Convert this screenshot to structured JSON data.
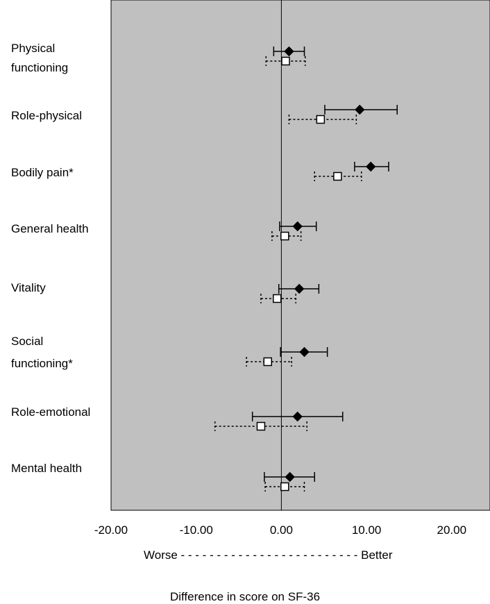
{
  "chart_data": {
    "type": "scatter",
    "subtype": "forest-plot",
    "xlabel": "Difference in score on SF-36",
    "direction_label": "Worse - - - - - - - - - - - - - - - - - - - - - - - - - Better",
    "xlim": [
      -20,
      24.5
    ],
    "xticks": [
      "-20.00",
      "-10.00",
      "0.00",
      "10.00",
      "20.00"
    ],
    "xtick_values": [
      -20,
      -10,
      0,
      10,
      20
    ],
    "reference_line": 0,
    "background": "#c0c0c0",
    "categories": [
      "Physical\nfunctioning",
      "Role-physical",
      "Bodily pain*",
      "General health",
      "Vitality",
      "Social\nfunctioning*",
      "Role-emotional",
      "Mental health"
    ],
    "series": [
      {
        "marker": "filled-diamond",
        "line": "solid",
        "values": [
          0.9,
          9.2,
          10.5,
          1.9,
          2.1,
          2.7,
          1.9,
          1.0
        ],
        "ci_low": [
          -0.9,
          5.1,
          8.6,
          -0.2,
          -0.3,
          -0.1,
          -3.4,
          -2.0
        ],
        "ci_high": [
          2.7,
          13.6,
          12.6,
          4.1,
          4.4,
          5.4,
          7.2,
          3.9
        ]
      },
      {
        "marker": "open-square",
        "line": "dotted",
        "values": [
          0.5,
          4.6,
          6.6,
          0.4,
          -0.5,
          -1.6,
          -2.4,
          0.4
        ],
        "ci_low": [
          -1.8,
          0.9,
          3.9,
          -1.1,
          -2.4,
          -4.1,
          -7.8,
          -1.9
        ],
        "ci_high": [
          2.8,
          8.8,
          9.4,
          2.3,
          1.7,
          1.2,
          3.0,
          2.7
        ]
      }
    ]
  }
}
